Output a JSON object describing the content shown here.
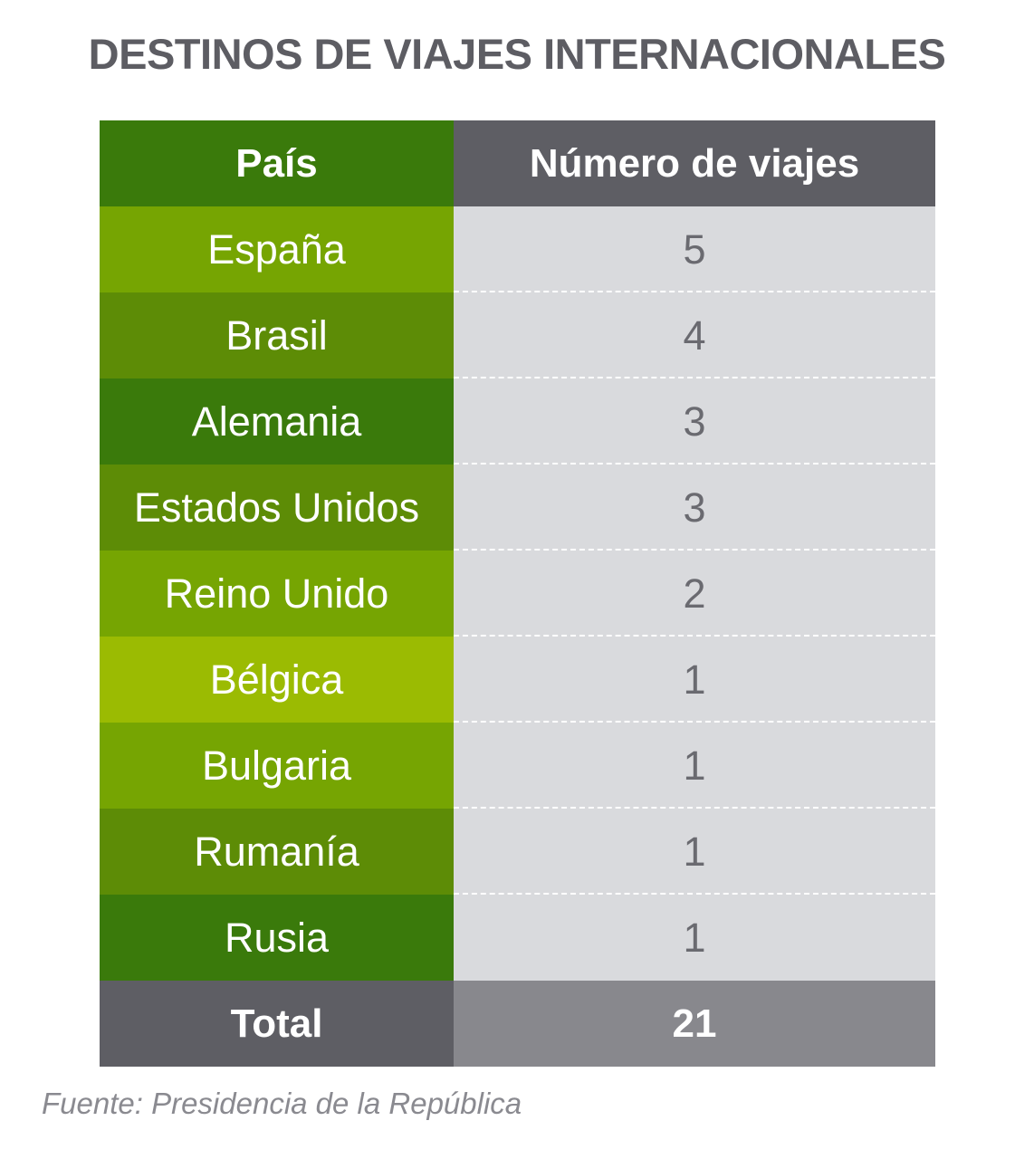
{
  "title": "DESTINOS DE VIAJES INTERNACIONALES",
  "chart_data": {
    "type": "table",
    "columns": [
      "País",
      "Número de viajes"
    ],
    "rows": [
      {
        "country": "España",
        "value": "5",
        "color": "#76a502"
      },
      {
        "country": "Brasil",
        "value": "4",
        "color": "#5d8c06"
      },
      {
        "country": "Alemania",
        "value": "3",
        "color": "#3a7a0b"
      },
      {
        "country": "Estados Unidos",
        "value": "3",
        "color": "#5d8c06"
      },
      {
        "country": "Reino Unido",
        "value": "2",
        "color": "#76a502"
      },
      {
        "country": "Bélgica",
        "value": "1",
        "color": "#9bbb02"
      },
      {
        "country": "Bulgaria",
        "value": "1",
        "color": "#76a502"
      },
      {
        "country": "Rumanía",
        "value": "1",
        "color": "#5d8c06"
      },
      {
        "country": "Rusia",
        "value": "1",
        "color": "#3a7a0b"
      }
    ],
    "total": {
      "label": "Total",
      "value": "21"
    }
  },
  "source": "Fuente: Presidencia de la República"
}
